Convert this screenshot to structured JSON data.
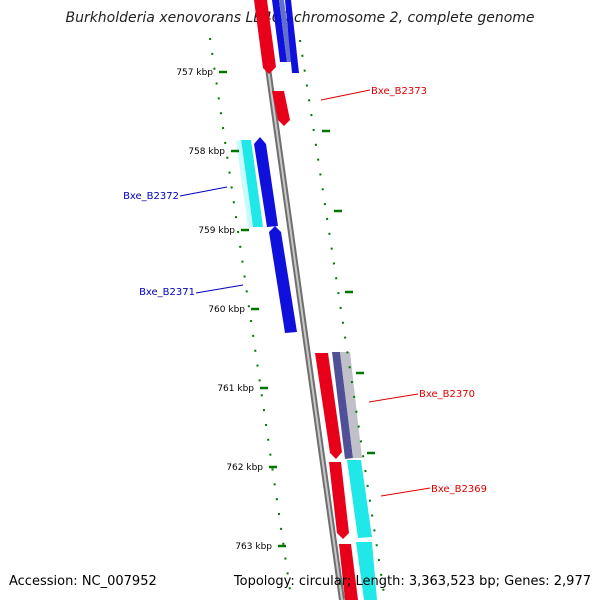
{
  "title": "Burkholderia xenovorans LB400 chromosome 2, complete genome",
  "accession_text": "Accession: NC_007952",
  "summary_text": "Topology: circular; Length: 3,363,523 bp; Genes: 2,977",
  "colors": {
    "backbone": "#8a8a8a",
    "forward_gene": "#e8001a",
    "reverse_gene": "#1010dd",
    "cds_cyan": "#20e8e8",
    "cds_purple": "#505099",
    "tick": "#007700",
    "label_red": "#dd0000",
    "label_blue": "#0000bb"
  },
  "kbp_labels": [
    "757 kbp",
    "758 kbp",
    "759 kbp",
    "760 kbp",
    "761 kbp",
    "762 kbp",
    "763 kbp"
  ],
  "gene_labels": [
    {
      "name": "Bxe_B2373",
      "side": "right",
      "strand": "forward"
    },
    {
      "name": "Bxe_B2372",
      "side": "left",
      "strand": "reverse"
    },
    {
      "name": "Bxe_B2371",
      "side": "left",
      "strand": "reverse"
    },
    {
      "name": "Bxe_B2370",
      "side": "right",
      "strand": "forward"
    },
    {
      "name": "Bxe_B2369",
      "side": "right",
      "strand": "forward"
    }
  ]
}
